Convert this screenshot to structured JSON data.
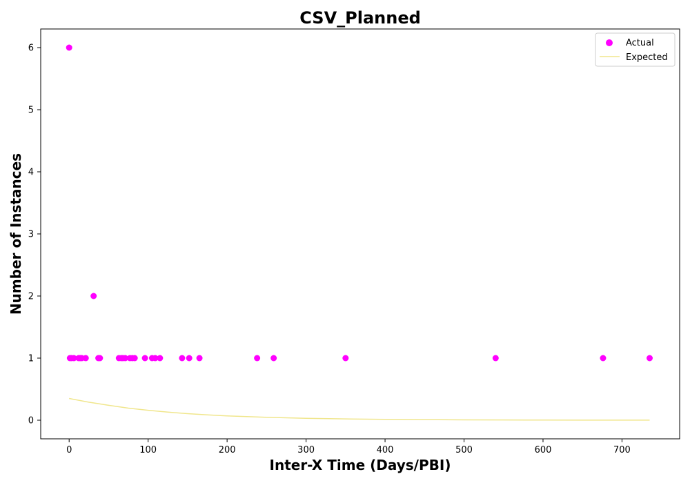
{
  "chart_data": {
    "type": "scatter",
    "title": "CSV_Planned",
    "xlabel": "Inter-X Time (Days/PBI)",
    "ylabel": "Number of Instances",
    "xlim": [
      -36,
      773
    ],
    "ylim": [
      -0.3,
      6.3
    ],
    "x_ticks": [
      0,
      100,
      200,
      300,
      400,
      500,
      600,
      700
    ],
    "y_ticks": [
      0,
      1,
      2,
      3,
      4,
      5,
      6
    ],
    "grid": false,
    "legend_position": "top-right",
    "series": [
      {
        "name": "Actual",
        "kind": "scatter",
        "color": "#ff00ff",
        "x": [
          0,
          1,
          3,
          6,
          12,
          14,
          16,
          21,
          31,
          37,
          39,
          63,
          66,
          68,
          71,
          77,
          80,
          83,
          96,
          105,
          109,
          115,
          143,
          152,
          165,
          238,
          259,
          350,
          540,
          676,
          735
        ],
        "y": [
          6,
          1,
          1,
          1,
          1,
          1,
          1,
          1,
          2,
          1,
          1,
          1,
          1,
          1,
          1,
          1,
          1,
          1,
          1,
          1,
          1,
          1,
          1,
          1,
          1,
          1,
          1,
          1,
          1,
          1,
          1
        ]
      },
      {
        "name": "Expected",
        "kind": "line",
        "color": "#f0e68c",
        "x": [
          0,
          25,
          50,
          75,
          100,
          125,
          150,
          175,
          200,
          250,
          300,
          350,
          400,
          450,
          500,
          550,
          600,
          650,
          700,
          735
        ],
        "y": [
          0.35,
          0.29,
          0.24,
          0.195,
          0.16,
          0.13,
          0.105,
          0.086,
          0.07,
          0.047,
          0.031,
          0.021,
          0.014,
          0.009,
          0.006,
          0.004,
          0.003,
          0.002,
          0.001,
          0.001
        ]
      }
    ]
  }
}
